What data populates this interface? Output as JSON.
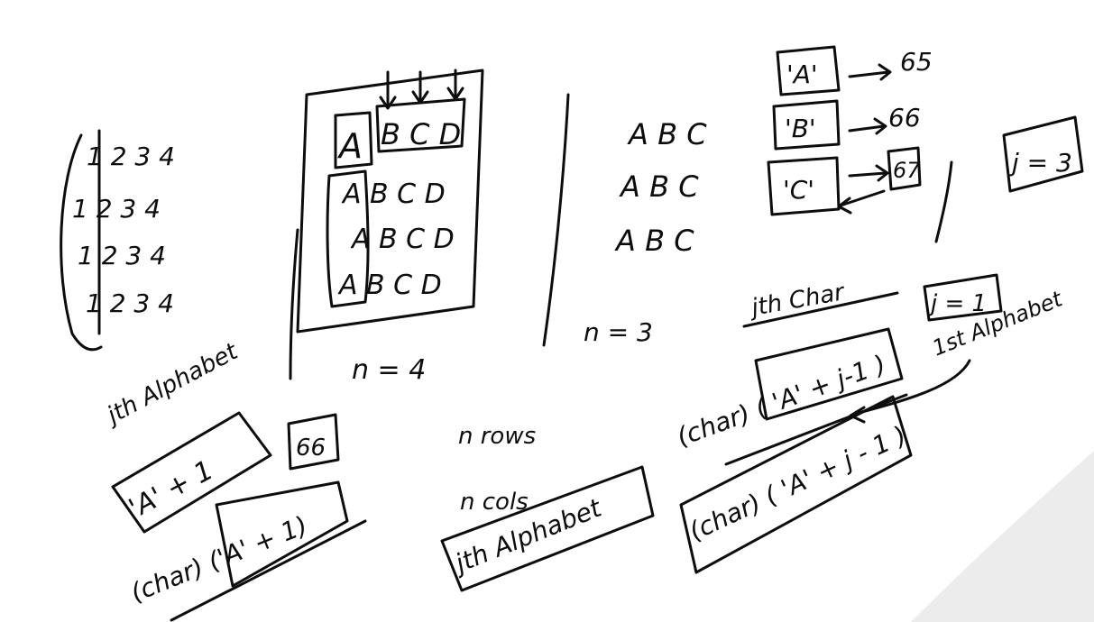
{
  "colors": {
    "ink": "#0d0d0d",
    "background": "#ffffff",
    "corner_shade": "#ececec"
  },
  "example1": {
    "rows": [
      "1 2 3 4",
      "1 2 3 4",
      "1 2 3 4",
      "1 2 3 4"
    ]
  },
  "example2": {
    "rows": [
      "A B C D",
      "A B C D",
      "A B C D",
      "A B C D"
    ],
    "n_label": "n = 4"
  },
  "example3": {
    "rows": [
      "A B C",
      "A B C",
      "A B C"
    ],
    "n_label": "n = 3"
  },
  "ascii": {
    "a_char": "'A'",
    "a_code": "65",
    "b_char": "'B'",
    "b_code": "66",
    "c_char": "'C'",
    "c_code": "67",
    "j_box": "j = 3"
  },
  "left_notes": {
    "heading": "jth Alphabet",
    "expr": "'A' + 1",
    "result": "66",
    "cast_expr": "(char) ('A' + 1)"
  },
  "middle_notes": {
    "rows": "n rows",
    "cols": "n cols",
    "jth": "jth Alphabet"
  },
  "right_notes": {
    "jth_char": "jth Char",
    "j_eq_1": "j = 1",
    "first_alpha": "1st Alphabet",
    "expr": "(char) ( 'A' + j-1 )",
    "final_expr": "(char) ( 'A' + j - 1 )"
  }
}
